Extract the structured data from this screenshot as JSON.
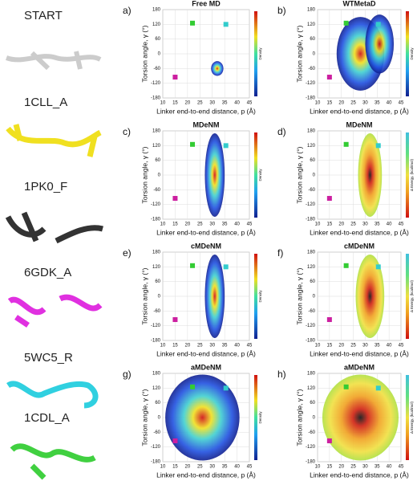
{
  "structures": [
    {
      "label": "START"
    },
    {
      "label": "1CLL_A"
    },
    {
      "label": "1PK0_F"
    },
    {
      "label": "6GDK_A"
    },
    {
      "label": "5WC5_R"
    },
    {
      "label": "1CDL_A"
    }
  ],
  "chart_data": [
    {
      "type": "scatter",
      "label": "a)",
      "title": "Free MD",
      "x_label": "Linker end-to-end distance, p (Å)",
      "y_label": "Torsion angle, γ (°)",
      "colorbar_label": "Density",
      "xlim": [
        10,
        45
      ],
      "xticks": [
        10,
        15,
        20,
        25,
        30,
        35,
        40,
        45
      ],
      "ylim": [
        -180,
        180
      ],
      "yticks": [
        -180,
        -120,
        -60,
        0,
        60,
        120,
        180
      ],
      "grid": true,
      "series": [
        {
          "color": "#33cc33",
          "x": [
            22
          ],
          "values": [
            125
          ]
        },
        {
          "color": "#33cccc",
          "x": [
            35.5
          ],
          "values": [
            120
          ]
        },
        {
          "color": "#cc1fa0",
          "x": [
            15
          ],
          "values": [
            -95
          ]
        }
      ]
    },
    {
      "type": "scatter",
      "label": "b)",
      "title": "WTMetaD",
      "x_label": "Linker end-to-end distance, p (Å)",
      "y_label": "Torsion angle, γ (°)",
      "colorbar_label": "Density",
      "xlim": [
        10,
        45
      ],
      "xticks": [
        10,
        15,
        20,
        25,
        30,
        35,
        40,
        45
      ],
      "ylim": [
        -180,
        180
      ],
      "yticks": [
        -180,
        -120,
        -60,
        0,
        60,
        120,
        180
      ],
      "grid": true,
      "series": [
        {
          "color": "#33cc33",
          "x": [
            22
          ],
          "values": [
            125
          ]
        },
        {
          "color": "#33cccc",
          "x": [
            35.5
          ],
          "values": [
            120
          ]
        },
        {
          "color": "#cc1fa0",
          "x": [
            15
          ],
          "values": [
            -95
          ]
        }
      ]
    },
    {
      "type": "scatter",
      "label": "c)",
      "title": "MDeNM",
      "x_label": "Linker end-to-end distance, p (Å)",
      "y_label": "Torsion angle, γ (°)",
      "colorbar_label": "Density",
      "xlim": [
        10,
        45
      ],
      "xticks": [
        10,
        15,
        20,
        25,
        30,
        35,
        40,
        45
      ],
      "ylim": [
        -180,
        180
      ],
      "yticks": [
        -180,
        -120,
        -60,
        0,
        60,
        120,
        180
      ],
      "grid": true,
      "series": [
        {
          "color": "#33cc33",
          "x": [
            22
          ],
          "values": [
            125
          ]
        },
        {
          "color": "#33cccc",
          "x": [
            35.5
          ],
          "values": [
            120
          ]
        },
        {
          "color": "#cc1fa0",
          "x": [
            15
          ],
          "values": [
            -95
          ]
        }
      ]
    },
    {
      "type": "scatter",
      "label": "d)",
      "title": "MDeNM",
      "x_label": "Linker end-to-end distance, p (Å)",
      "y_label": "Torsion angle, γ (°)",
      "colorbar_label": "Δ Energy, (kcal/mol)",
      "xlim": [
        10,
        45
      ],
      "xticks": [
        10,
        15,
        20,
        25,
        30,
        35,
        40,
        45
      ],
      "ylim": [
        -180,
        180
      ],
      "yticks": [
        -180,
        -120,
        -60,
        0,
        60,
        120,
        180
      ],
      "grid": true,
      "series": [
        {
          "color": "#33cc33",
          "x": [
            22
          ],
          "values": [
            125
          ]
        },
        {
          "color": "#33cccc",
          "x": [
            35.5
          ],
          "values": [
            120
          ]
        },
        {
          "color": "#cc1fa0",
          "x": [
            15
          ],
          "values": [
            -95
          ]
        }
      ]
    },
    {
      "type": "scatter",
      "label": "e)",
      "title": "cMDeNM",
      "x_label": "Linker end-to-end distance, p (Å)",
      "y_label": "Torsion angle, γ (°)",
      "colorbar_label": "Density",
      "xlim": [
        10,
        45
      ],
      "xticks": [
        10,
        15,
        20,
        25,
        30,
        35,
        40,
        45
      ],
      "ylim": [
        -180,
        180
      ],
      "yticks": [
        -180,
        -120,
        -60,
        0,
        60,
        120,
        180
      ],
      "grid": true,
      "series": [
        {
          "color": "#33cc33",
          "x": [
            22
          ],
          "values": [
            125
          ]
        },
        {
          "color": "#33cccc",
          "x": [
            35.5
          ],
          "values": [
            120
          ]
        },
        {
          "color": "#cc1fa0",
          "x": [
            15
          ],
          "values": [
            -95
          ]
        }
      ]
    },
    {
      "type": "scatter",
      "label": "f)",
      "title": "cMDeNM",
      "x_label": "Linker end-to-end distance, p (Å)",
      "y_label": "Torsion angle, γ (°)",
      "colorbar_label": "Δ Energy, (kcal/mol)",
      "xlim": [
        10,
        45
      ],
      "xticks": [
        10,
        15,
        20,
        25,
        30,
        35,
        40,
        45
      ],
      "ylim": [
        -180,
        180
      ],
      "yticks": [
        -180,
        -120,
        -60,
        0,
        60,
        120,
        180
      ],
      "grid": true,
      "series": [
        {
          "color": "#33cc33",
          "x": [
            22
          ],
          "values": [
            125
          ]
        },
        {
          "color": "#33cccc",
          "x": [
            35.5
          ],
          "values": [
            120
          ]
        },
        {
          "color": "#cc1fa0",
          "x": [
            15
          ],
          "values": [
            -95
          ]
        }
      ]
    },
    {
      "type": "scatter",
      "label": "g)",
      "title": "aMDeNM",
      "x_label": "Linker end-to-end distance, p (Å)",
      "y_label": "Torsion angle, γ (°)",
      "colorbar_label": "Density",
      "xlim": [
        10,
        45
      ],
      "xticks": [
        10,
        15,
        20,
        25,
        30,
        35,
        40,
        45
      ],
      "ylim": [
        -180,
        180
      ],
      "yticks": [
        -180,
        -120,
        -60,
        0,
        60,
        120,
        180
      ],
      "grid": true,
      "series": [
        {
          "color": "#33cc33",
          "x": [
            22
          ],
          "values": [
            125
          ]
        },
        {
          "color": "#33cccc",
          "x": [
            35.5
          ],
          "values": [
            120
          ]
        },
        {
          "color": "#cc1fa0",
          "x": [
            15
          ],
          "values": [
            -95
          ]
        }
      ]
    },
    {
      "type": "scatter",
      "label": "h)",
      "title": "aMDeNM",
      "x_label": "Linker end-to-end distance, p (Å)",
      "y_label": "Torsion angle, γ (°)",
      "colorbar_label": "Δ Energy, (kcal/mol)",
      "xlim": [
        10,
        45
      ],
      "xticks": [
        10,
        15,
        20,
        25,
        30,
        35,
        40,
        45
      ],
      "ylim": [
        -180,
        180
      ],
      "yticks": [
        -180,
        -120,
        -60,
        0,
        60,
        120,
        180
      ],
      "grid": true,
      "series": [
        {
          "color": "#33cc33",
          "x": [
            22
          ],
          "values": [
            125
          ]
        },
        {
          "color": "#33cccc",
          "x": [
            35.5
          ],
          "values": [
            120
          ]
        },
        {
          "color": "#cc1fa0",
          "x": [
            15
          ],
          "values": [
            -95
          ]
        }
      ]
    }
  ]
}
